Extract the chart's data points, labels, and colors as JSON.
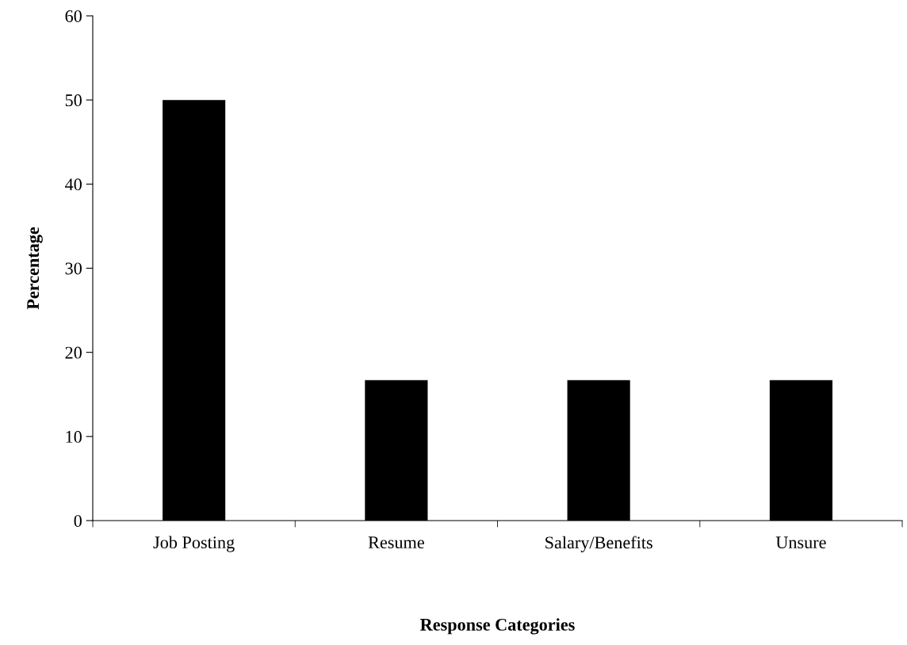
{
  "chart_data": {
    "type": "bar",
    "xlabel": "Response Categories",
    "ylabel": "Percentage",
    "categories": [
      "Job Posting",
      "Resume",
      "Salary/Benefits",
      "Unsure"
    ],
    "values": [
      50,
      16.7,
      16.7,
      16.7
    ],
    "color": "#000000",
    "ylim": [
      0,
      60
    ],
    "yticks": [
      0,
      10,
      20,
      30,
      40,
      50,
      60
    ],
    "grid": false,
    "legend": false
  }
}
